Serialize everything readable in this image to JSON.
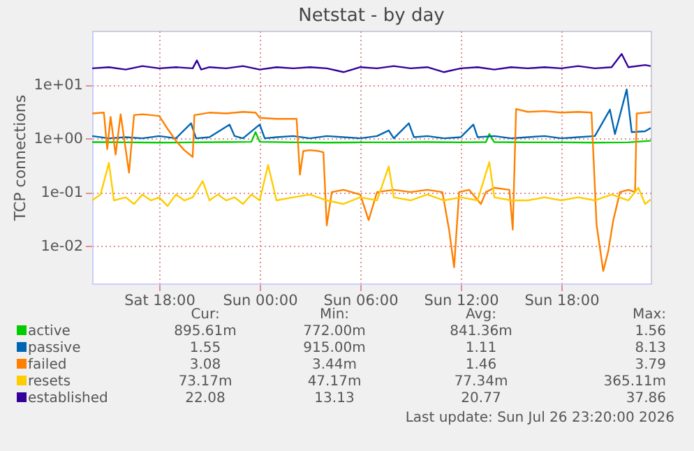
{
  "chart_data": {
    "type": "line",
    "title": "Netstat - by day",
    "ylabel": "TCP connections",
    "log": "y",
    "grid": true,
    "legend": "bottom",
    "xlim": [
      "2026-07-25T14:00",
      "2026-07-26T23:20"
    ],
    "xticks": [
      {
        "value": "2026-07-25T18:00",
        "label": "Sat 18:00"
      },
      {
        "value": "2026-07-26T00:00",
        "label": "Sun 00:00"
      },
      {
        "value": "2026-07-26T06:00",
        "label": "Sun 06:00"
      },
      {
        "value": "2026-07-26T12:00",
        "label": "Sun 12:00"
      },
      {
        "value": "2026-07-26T18:00",
        "label": "Sun 18:00"
      }
    ],
    "ylim": [
      0.002,
      100
    ],
    "yticks": [
      {
        "value": 0.01,
        "label": "1e-02"
      },
      {
        "value": 0.1,
        "label": "1e-01"
      },
      {
        "value": 1,
        "label": "1e+00"
      },
      {
        "value": 10,
        "label": "1e+01"
      }
    ],
    "series": [
      {
        "name": "active",
        "color": "#00cc00",
        "x": [
          "2026-07-25T14:00",
          "2026-07-25T16:00",
          "2026-07-25T18:00",
          "2026-07-25T20:00",
          "2026-07-25T22:00",
          "2026-07-25T23:30",
          "2026-07-25T23:45",
          "2026-07-26T00:00",
          "2026-07-26T02:00",
          "2026-07-26T04:00",
          "2026-07-26T06:00",
          "2026-07-26T08:00",
          "2026-07-26T10:00",
          "2026-07-26T12:00",
          "2026-07-26T13:30",
          "2026-07-26T13:42",
          "2026-07-26T14:00",
          "2026-07-26T16:00",
          "2026-07-26T18:00",
          "2026-07-26T20:00",
          "2026-07-26T22:00",
          "2026-07-26T23:20"
        ],
        "values": [
          0.85,
          0.84,
          0.83,
          0.84,
          0.85,
          0.86,
          1.3,
          0.86,
          0.84,
          0.83,
          0.84,
          0.84,
          0.85,
          0.84,
          0.85,
          1.2,
          0.85,
          0.84,
          0.84,
          0.83,
          0.84,
          0.9
        ]
      },
      {
        "name": "passive",
        "color": "#0066b3",
        "x": [
          "2026-07-25T14:00",
          "2026-07-25T15:00",
          "2026-07-25T16:00",
          "2026-07-25T17:00",
          "2026-07-25T18:00",
          "2026-07-25T19:00",
          "2026-07-25T19:54",
          "2026-07-25T20:12",
          "2026-07-25T21:00",
          "2026-07-25T22:12",
          "2026-07-25T22:30",
          "2026-07-25T23:00",
          "2026-07-26T00:00",
          "2026-07-26T00:18",
          "2026-07-26T01:00",
          "2026-07-26T02:00",
          "2026-07-26T03:00",
          "2026-07-26T04:00",
          "2026-07-26T05:00",
          "2026-07-26T06:00",
          "2026-07-26T07:00",
          "2026-07-26T07:42",
          "2026-07-26T08:00",
          "2026-07-26T08:54",
          "2026-07-26T09:12",
          "2026-07-26T10:00",
          "2026-07-26T11:00",
          "2026-07-26T12:00",
          "2026-07-26T12:45",
          "2026-07-26T13:00",
          "2026-07-26T14:00",
          "2026-07-26T15:00",
          "2026-07-26T16:00",
          "2026-07-26T17:00",
          "2026-07-26T18:00",
          "2026-07-26T19:00",
          "2026-07-26T20:00",
          "2026-07-26T20:54",
          "2026-07-26T21:12",
          "2026-07-26T21:54",
          "2026-07-26T22:12",
          "2026-07-26T23:00",
          "2026-07-26T23:20"
        ],
        "values": [
          1.1,
          1.0,
          1.05,
          1.0,
          1.1,
          1.0,
          1.9,
          1.0,
          1.05,
          1.8,
          1.1,
          1.0,
          1.8,
          1.0,
          1.05,
          1.1,
          1.0,
          1.1,
          1.05,
          1.0,
          1.1,
          1.4,
          1.0,
          1.9,
          1.05,
          1.1,
          1.0,
          1.05,
          1.8,
          1.05,
          1.1,
          1.0,
          1.05,
          1.1,
          1.0,
          1.05,
          1.1,
          3.4,
          1.2,
          8.1,
          1.3,
          1.35,
          1.55
        ]
      },
      {
        "name": "failed",
        "color": "#ff8000",
        "x": [
          "2026-07-25T14:00",
          "2026-07-25T14:42",
          "2026-07-25T14:54",
          "2026-07-25T15:06",
          "2026-07-25T15:24",
          "2026-07-25T15:42",
          "2026-07-25T16:12",
          "2026-07-25T16:30",
          "2026-07-25T17:00",
          "2026-07-25T18:00",
          "2026-07-25T18:30",
          "2026-07-25T19:00",
          "2026-07-25T19:30",
          "2026-07-25T20:00",
          "2026-07-25T20:06",
          "2026-07-25T21:00",
          "2026-07-25T22:00",
          "2026-07-25T23:00",
          "2026-07-25T23:45",
          "2026-07-26T00:00",
          "2026-07-26T01:00",
          "2026-07-26T02:12",
          "2026-07-26T02:24",
          "2026-07-26T02:36",
          "2026-07-26T03:00",
          "2026-07-26T03:30",
          "2026-07-26T03:48",
          "2026-07-26T04:00",
          "2026-07-26T04:18",
          "2026-07-26T05:00",
          "2026-07-26T06:00",
          "2026-07-26T06:30",
          "2026-07-26T07:00",
          "2026-07-26T08:00",
          "2026-07-26T09:00",
          "2026-07-26T10:00",
          "2026-07-26T10:54",
          "2026-07-26T11:18",
          "2026-07-26T11:36",
          "2026-07-26T11:54",
          "2026-07-26T12:30",
          "2026-07-26T13:12",
          "2026-07-26T13:30",
          "2026-07-26T14:00",
          "2026-07-26T14:54",
          "2026-07-26T15:06",
          "2026-07-26T15:18",
          "2026-07-26T16:00",
          "2026-07-26T17:00",
          "2026-07-26T18:00",
          "2026-07-26T19:00",
          "2026-07-26T19:48",
          "2026-07-26T20:06",
          "2026-07-26T20:30",
          "2026-07-26T20:48",
          "2026-07-26T21:06",
          "2026-07-26T21:30",
          "2026-07-26T22:00",
          "2026-07-26T22:24",
          "2026-07-26T22:30",
          "2026-07-26T23:00",
          "2026-07-26T23:20"
        ],
        "values": [
          2.9,
          3.0,
          0.63,
          2.5,
          0.5,
          2.8,
          0.23,
          2.7,
          2.8,
          2.6,
          1.5,
          0.9,
          0.6,
          0.45,
          2.7,
          3.0,
          2.9,
          3.1,
          3.0,
          2.4,
          2.3,
          2.3,
          0.21,
          0.58,
          0.6,
          0.58,
          0.55,
          0.024,
          0.1,
          0.11,
          0.09,
          0.03,
          0.1,
          0.11,
          0.1,
          0.11,
          0.1,
          0.02,
          0.004,
          0.1,
          0.11,
          0.06,
          0.1,
          0.12,
          0.11,
          0.02,
          3.5,
          3.1,
          3.2,
          3.0,
          3.1,
          3.0,
          0.025,
          0.0034,
          0.008,
          0.03,
          0.1,
          0.11,
          0.1,
          2.9,
          3.0,
          3.08
        ]
      },
      {
        "name": "resets",
        "color": "#ffcc00",
        "x": [
          "2026-07-25T14:00",
          "2026-07-25T14:30",
          "2026-07-25T15:00",
          "2026-07-25T15:18",
          "2026-07-25T16:00",
          "2026-07-25T16:30",
          "2026-07-25T17:00",
          "2026-07-25T17:30",
          "2026-07-25T18:00",
          "2026-07-25T18:30",
          "2026-07-25T19:00",
          "2026-07-25T19:30",
          "2026-07-25T20:00",
          "2026-07-25T20:36",
          "2026-07-25T21:00",
          "2026-07-25T21:30",
          "2026-07-25T22:00",
          "2026-07-25T22:30",
          "2026-07-25T23:00",
          "2026-07-25T23:30",
          "2026-07-26T00:00",
          "2026-07-26T00:30",
          "2026-07-26T01:00",
          "2026-07-26T02:00",
          "2026-07-26T03:00",
          "2026-07-26T04:00",
          "2026-07-26T05:00",
          "2026-07-26T06:00",
          "2026-07-26T07:00",
          "2026-07-26T07:42",
          "2026-07-26T08:00",
          "2026-07-26T09:00",
          "2026-07-26T10:00",
          "2026-07-26T11:00",
          "2026-07-26T12:00",
          "2026-07-26T13:00",
          "2026-07-26T13:42",
          "2026-07-26T14:00",
          "2026-07-26T15:00",
          "2026-07-26T16:00",
          "2026-07-26T17:00",
          "2026-07-26T18:00",
          "2026-07-26T19:00",
          "2026-07-26T20:00",
          "2026-07-26T21:00",
          "2026-07-26T22:00",
          "2026-07-26T22:36",
          "2026-07-26T23:00",
          "2026-07-26T23:20"
        ],
        "values": [
          0.07,
          0.09,
          0.35,
          0.07,
          0.08,
          0.06,
          0.09,
          0.07,
          0.08,
          0.055,
          0.09,
          0.07,
          0.08,
          0.16,
          0.07,
          0.09,
          0.07,
          0.08,
          0.06,
          0.09,
          0.07,
          0.32,
          0.07,
          0.08,
          0.09,
          0.07,
          0.06,
          0.08,
          0.07,
          0.3,
          0.08,
          0.07,
          0.09,
          0.07,
          0.08,
          0.07,
          0.36,
          0.08,
          0.07,
          0.07,
          0.08,
          0.07,
          0.08,
          0.07,
          0.09,
          0.07,
          0.12,
          0.06,
          0.073
        ]
      },
      {
        "name": "established",
        "color": "#330099",
        "x": [
          "2026-07-25T14:00",
          "2026-07-25T15:00",
          "2026-07-25T16:00",
          "2026-07-25T17:00",
          "2026-07-25T18:00",
          "2026-07-25T19:00",
          "2026-07-25T20:00",
          "2026-07-25T20:15",
          "2026-07-25T20:30",
          "2026-07-25T21:00",
          "2026-07-25T22:00",
          "2026-07-25T23:00",
          "2026-07-26T00:00",
          "2026-07-26T01:00",
          "2026-07-26T02:00",
          "2026-07-26T03:00",
          "2026-07-26T04:00",
          "2026-07-26T05:00",
          "2026-07-26T06:00",
          "2026-07-26T07:00",
          "2026-07-26T08:00",
          "2026-07-26T09:00",
          "2026-07-26T10:00",
          "2026-07-26T11:00",
          "2026-07-26T12:00",
          "2026-07-26T13:00",
          "2026-07-26T14:00",
          "2026-07-26T15:00",
          "2026-07-26T16:00",
          "2026-07-26T17:00",
          "2026-07-26T18:00",
          "2026-07-26T19:00",
          "2026-07-26T20:00",
          "2026-07-26T21:00",
          "2026-07-26T21:36",
          "2026-07-26T22:00",
          "2026-07-26T23:00",
          "2026-07-26T23:20"
        ],
        "values": [
          20,
          21,
          19,
          22,
          20,
          21,
          20,
          28,
          19,
          21,
          20,
          22,
          19,
          21,
          20,
          21,
          20,
          17,
          21,
          20,
          22,
          20,
          21,
          17,
          20,
          21,
          19,
          21,
          20,
          21,
          20,
          22,
          20,
          21,
          37,
          21,
          23,
          22
        ]
      }
    ],
    "annotations": [
      "Cur:",
      "Min:",
      "Avg:",
      "Max:",
      "895.61m",
      "772.00m",
      "841.36m",
      "1.56",
      "1.55",
      "915.00m",
      "1.11",
      "8.13",
      "3.08",
      "3.44m",
      "1.46",
      "3.79",
      "73.17m",
      "47.17m",
      "77.34m",
      "365.11m",
      "22.08",
      "13.13",
      "20.77",
      "37.86",
      "Last update: Sun Jul 26 23:20:00 2026"
    ]
  }
}
